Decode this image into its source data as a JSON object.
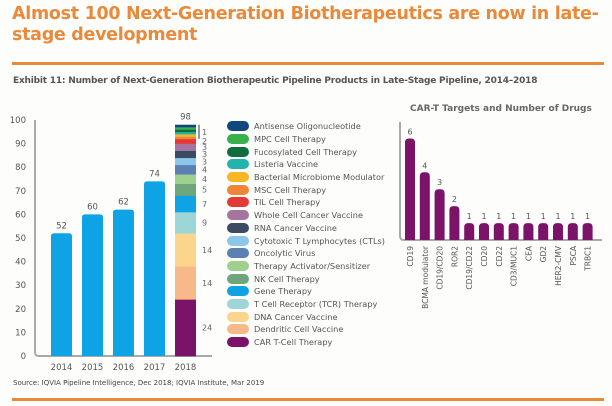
{
  "page": {
    "title": "Almost 100 Next-Generation Biotherapeutics are now in late-stage development",
    "exhibit": "Exhibit 11: Number of Next-Generation Biotherapeutic Pipeline Products in Late-Stage Pipeline, 2014–2018",
    "source": "Source: IQVIA Pipeline Intelligence, Dec 2018; IQVIA Institute, Mar 2019",
    "accent_color": "#e98a3b"
  },
  "chart_data": [
    {
      "type": "bar",
      "title": "",
      "xlabel": "",
      "ylabel": "",
      "ylim": [
        0,
        100
      ],
      "yticks": [
        0,
        10,
        20,
        30,
        40,
        50,
        60,
        70,
        80,
        90,
        100
      ],
      "categories": [
        "2014",
        "2015",
        "2016",
        "2017"
      ],
      "values": [
        52,
        60,
        62,
        74
      ],
      "bar_color": "#0ea3e4",
      "stacked_category": "2018",
      "stacked_total": 98,
      "legend_placement": "right",
      "series": [
        {
          "name": "CAR T-Cell Therapy",
          "value": 24,
          "color": "#7b1369",
          "label": "24"
        },
        {
          "name": "Dendritic Cell Vaccine",
          "value": 14,
          "color": "#f8b98a",
          "label": "14"
        },
        {
          "name": "DNA Cancer Vaccine",
          "value": 14,
          "color": "#fbd58c",
          "label": "14"
        },
        {
          "name": "T Cell Receptor (TCR) Therapy",
          "value": 9,
          "color": "#9ed6d8",
          "label": "9"
        },
        {
          "name": "Gene Therapy",
          "value": 7,
          "color": "#0ea3e4",
          "label": "7"
        },
        {
          "name": "NK Cell Therapy",
          "value": 5,
          "color": "#6fa57a",
          "label": "5"
        },
        {
          "name": "Therapy Activator/Sensitizer",
          "value": 4,
          "color": "#9fd08f",
          "label": "4"
        },
        {
          "name": "Oncolytic Virus",
          "value": 4,
          "color": "#5c80b3",
          "label": "4"
        },
        {
          "name": "Cytotoxic T Lymphocytes (CTLs)",
          "value": 3,
          "color": "#8cc6ea",
          "label": "3"
        },
        {
          "name": "RNA Cancer Vaccine",
          "value": 3,
          "color": "#3c4a63",
          "label": "3"
        },
        {
          "name": "Whole Cell Cancer Vaccine",
          "value": 3,
          "color": "#a5749f",
          "label": "3"
        },
        {
          "name": "TIL Cell Therapy",
          "value": 2,
          "color": "#e43a36",
          "label": "2"
        },
        {
          "name": "MSC Cell Therapy",
          "value": 1,
          "color": "#f08437",
          "label": ""
        },
        {
          "name": "Bacterial Microbiome Modulator",
          "value": 1,
          "color": "#f8b625",
          "label": ""
        },
        {
          "name": "Listeria Vaccine",
          "value": 1,
          "color": "#1fb5ac",
          "label": ""
        },
        {
          "name": "Fucosylated Cell Therapy",
          "value": 1,
          "color": "#116d3f",
          "label": ""
        },
        {
          "name": "MPC Cell Therapy",
          "value": 1,
          "color": "#39b14a",
          "label": ""
        },
        {
          "name": "Antisense Oligonucleotide",
          "value": 1,
          "color": "#12467f",
          "label": ""
        }
      ],
      "bracket_label": "1",
      "legend_order": [
        "Antisense Oligonucleotide",
        "MPC Cell Therapy",
        "Fucosylated Cell Therapy",
        "Listeria Vaccine",
        "Bacterial Microbiome Modulator",
        "MSC Cell Therapy",
        "TIL Cell Therapy",
        "Whole Cell Cancer Vaccine",
        "RNA Cancer Vaccine",
        "Cytotoxic T Lymphocytes (CTLs)",
        "Oncolytic Virus",
        "Therapy Activator/Sensitizer",
        "NK Cell Therapy",
        "Gene Therapy",
        "T Cell Receptor (TCR) Therapy",
        "DNA Cancer Vaccine",
        "Dendritic Cell Vaccine",
        "CAR T-Cell Therapy"
      ]
    },
    {
      "type": "bar",
      "title": "CAR-T Targets and Number of Drugs",
      "xlabel": "",
      "ylabel": "",
      "ylim": [
        0,
        6.5
      ],
      "bar_color": "#7b1369",
      "categories": [
        "CD19",
        "BCMA modulator",
        "CD19/CD20",
        "ROR2",
        "CD19/CD22",
        "CD20",
        "CD22",
        "CD3/MUC1",
        "CEA",
        "GD2",
        "HER2-CMV",
        "PSCA",
        "TRBC1"
      ],
      "values": [
        6,
        4,
        3,
        2,
        1,
        1,
        1,
        1,
        1,
        1,
        1,
        1,
        1
      ]
    }
  ]
}
